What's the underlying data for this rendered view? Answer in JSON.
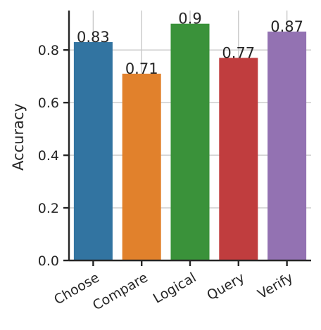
{
  "chart_data": {
    "type": "bar",
    "categories": [
      "Choose",
      "Compare",
      "Logical",
      "Query",
      "Verify"
    ],
    "values": [
      0.83,
      0.71,
      0.9,
      0.77,
      0.87
    ],
    "data_labels": [
      "0.83",
      "0.71",
      "0.9",
      "0.77",
      "0.87"
    ],
    "colors": [
      "#3274a1",
      "#e1812c",
      "#3a923a",
      "#c03d3e",
      "#9372b2"
    ],
    "title": "",
    "xlabel": "",
    "ylabel": "Accuracy",
    "ylim": [
      0,
      0.95
    ],
    "yticks": [
      0.0,
      0.2,
      0.4,
      0.6,
      0.8
    ],
    "ytick_labels": [
      "0.0",
      "0.2",
      "0.4",
      "0.6",
      "0.8"
    ],
    "grid": true
  }
}
